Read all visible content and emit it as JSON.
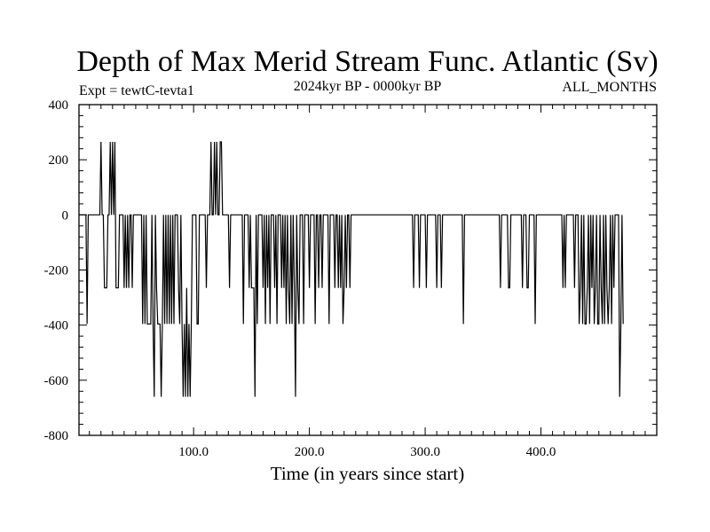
{
  "chart_data": {
    "type": "line",
    "title": "Depth of Max Merid Stream Func. Atlantic (Sv)",
    "experiment_label": "Expt = tewtC-tevta1",
    "period_label": "2024kyr BP - 0000kyr BP",
    "season_label": "ALL_MONTHS",
    "xlabel": "Time (in years since start)",
    "ylabel": "",
    "xlim": [
      1,
      500
    ],
    "ylim": [
      -800,
      400
    ],
    "xticks": [
      100,
      200,
      300,
      400
    ],
    "xtick_labels": [
      "100.0",
      "200.0",
      "300.0",
      "400.0"
    ],
    "yticks": [
      400,
      200,
      0,
      -200,
      -400,
      -600,
      -800
    ],
    "ytick_labels": [
      "400",
      "200",
      "0",
      "-200",
      "-400",
      "-600",
      "-800"
    ],
    "series": [
      {
        "name": "Depth of Max Merid Stream Func.",
        "values": [
          0,
          0,
          0,
          0,
          0,
          0,
          0,
          -396,
          0,
          0,
          0,
          0,
          0,
          0,
          0,
          0,
          0,
          0,
          0,
          265,
          0,
          0,
          -265,
          -265,
          -265,
          0,
          0,
          265,
          0,
          265,
          0,
          265,
          -265,
          -265,
          -265,
          0,
          0,
          0,
          0,
          -265,
          0,
          -265,
          0,
          -265,
          0,
          0,
          -265,
          0,
          0,
          0,
          0,
          0,
          0,
          0,
          0,
          -396,
          0,
          -396,
          0,
          -396,
          -396,
          -396,
          -396,
          0,
          -396,
          -660,
          0,
          -265,
          -396,
          -396,
          -396,
          -660,
          -396,
          0,
          -396,
          0,
          -396,
          0,
          -396,
          0,
          -396,
          0,
          -396,
          0,
          0,
          0,
          -265,
          -396,
          0,
          -396,
          -660,
          -396,
          -660,
          -265,
          -660,
          -396,
          -660,
          -396,
          0,
          0,
          0,
          0,
          -396,
          -396,
          0,
          0,
          0,
          0,
          0,
          0,
          -265,
          0,
          0,
          0,
          265,
          0,
          0,
          265,
          0,
          265,
          0,
          0,
          265,
          265,
          0,
          0,
          0,
          0,
          0,
          0,
          -265,
          0,
          0,
          0,
          0,
          0,
          0,
          0,
          0,
          0,
          0,
          0,
          -396,
          0,
          0,
          0,
          0,
          -265,
          0,
          -265,
          -265,
          -265,
          -660,
          0,
          -396,
          0,
          0,
          0,
          0,
          -265,
          0,
          -396,
          0,
          -265,
          0,
          -396,
          0,
          0,
          0,
          -265,
          0,
          -396,
          0,
          0,
          0,
          -265,
          0,
          -265,
          0,
          -396,
          0,
          -265,
          -396,
          0,
          -396,
          0,
          -265,
          -660,
          0,
          -265,
          -396,
          0,
          0,
          0,
          -396,
          0,
          0,
          0,
          0,
          -265,
          0,
          0,
          0,
          0,
          -396,
          0,
          0,
          -265,
          0,
          0,
          -265,
          0,
          0,
          0,
          0,
          0,
          -396,
          0,
          0,
          0,
          0,
          -265,
          0,
          0,
          -265,
          0,
          -265,
          0,
          -396,
          -265,
          0,
          -265,
          0,
          0,
          -265,
          0,
          0,
          0,
          0,
          0,
          0,
          0,
          0,
          0,
          0,
          0,
          0,
          0,
          0,
          0,
          0,
          0,
          0,
          0,
          0,
          0,
          0,
          0,
          0,
          0,
          0,
          0,
          0,
          0,
          0,
          0,
          0,
          0,
          0,
          0,
          0,
          0,
          0,
          0,
          0,
          0,
          0,
          0,
          0,
          0,
          0,
          0,
          0,
          0,
          0,
          0,
          0,
          0,
          0,
          -265,
          0,
          0,
          0,
          0,
          -265,
          0,
          0,
          0,
          0,
          0,
          -265,
          0,
          0,
          0,
          0,
          0,
          0,
          0,
          0,
          -265,
          0,
          0,
          0,
          -265,
          0,
          0,
          0,
          0,
          0,
          0,
          0,
          0,
          0,
          0,
          0,
          0,
          0,
          0,
          0,
          0,
          0,
          0,
          -396,
          0,
          0,
          0,
          0,
          0,
          0,
          0,
          0,
          0,
          0,
          0,
          0,
          0,
          0,
          0,
          0,
          0,
          0,
          0,
          0,
          0,
          0,
          0,
          0,
          0,
          0,
          0,
          0,
          0,
          0,
          0,
          -265,
          0,
          0,
          0,
          0,
          0,
          0,
          -265,
          -265,
          0,
          0,
          0,
          0,
          0,
          0,
          0,
          0,
          0,
          0,
          -265,
          0,
          0,
          0,
          -265,
          -265,
          0,
          0,
          0,
          0,
          0,
          -396,
          0,
          0,
          0,
          0,
          0,
          0,
          0,
          0,
          0,
          0,
          0,
          0,
          0,
          0,
          0,
          0,
          0,
          0,
          0,
          0,
          0,
          0,
          0,
          -265,
          0,
          -265,
          0,
          0,
          0,
          0,
          0,
          0,
          0,
          -265,
          0,
          0,
          0,
          -396,
          -265,
          0,
          -396,
          0,
          -396,
          -396,
          -265,
          0,
          -396,
          0,
          -265,
          0,
          -396,
          -265,
          0,
          -396,
          -396,
          0,
          -265,
          -396,
          0,
          -396,
          0,
          -265,
          -396,
          -265,
          0,
          -396,
          0,
          -265,
          0,
          0,
          0,
          0,
          -660,
          -396,
          0,
          -396
        ]
      }
    ]
  }
}
